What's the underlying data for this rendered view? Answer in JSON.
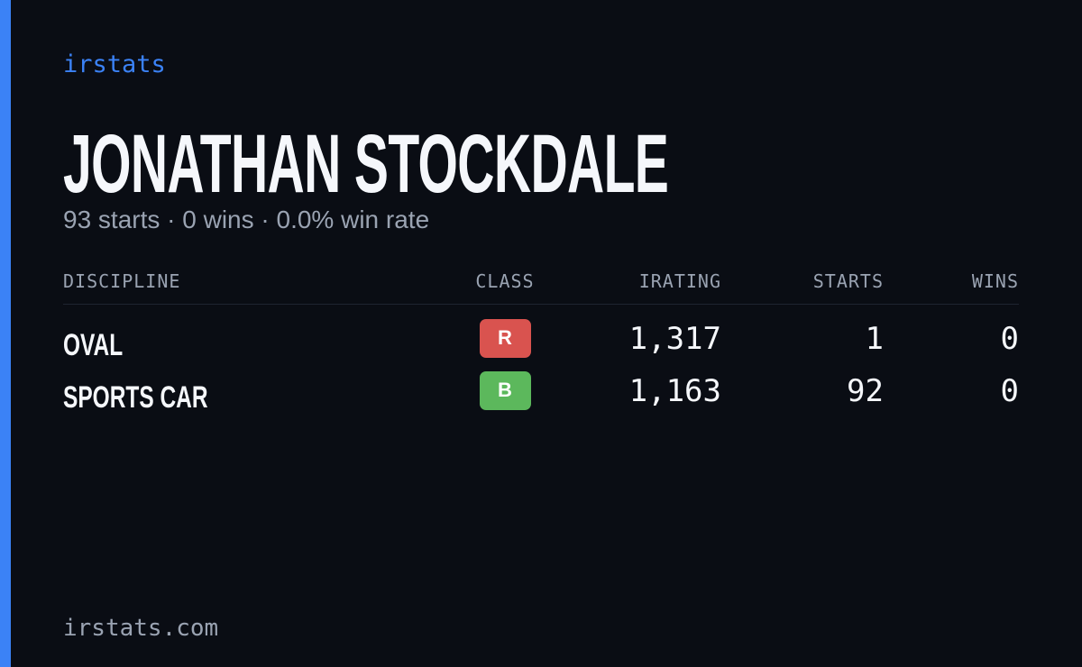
{
  "brand": "irstats",
  "player": {
    "name": "JONATHAN STOCKDALE",
    "summary": "93 starts · 0 wins · 0.0% win rate"
  },
  "table": {
    "columns": [
      "DISCIPLINE",
      "CLASS",
      "IRATING",
      "STARTS",
      "WINS"
    ],
    "rows": [
      {
        "discipline": "OVAL",
        "class": "R",
        "class_color": "#d9534f",
        "irating": "1,317",
        "starts": "1",
        "wins": "0"
      },
      {
        "discipline": "SPORTS CAR",
        "class": "B",
        "class_color": "#5cb85c",
        "irating": "1,163",
        "starts": "92",
        "wins": "0"
      }
    ]
  },
  "footer": "irstats.com"
}
